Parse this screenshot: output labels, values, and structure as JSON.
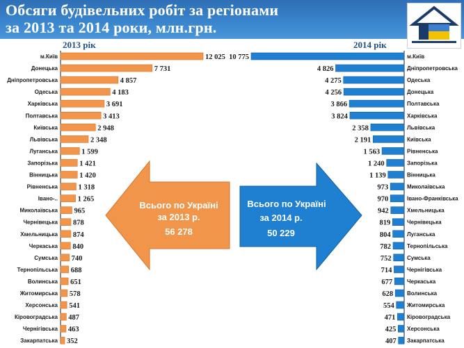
{
  "header": {
    "title_line1": "Обсяги будівельних робіт за регіонами",
    "title_line2": "за 2013 та 2014 роки, млн.грн."
  },
  "colors": {
    "orange": "#f0954a",
    "orange_dark": "#d8732a",
    "blue": "#1f7fd0",
    "blue_dark": "#13609f"
  },
  "chart_data": [
    {
      "type": "bar",
      "series_label": "2013 рік",
      "categories": [
        "м.Київ",
        "Донецька",
        "Дніпропетровська",
        "Одеська",
        "Харківська",
        "Полтавська",
        "Київська",
        "Львівська",
        "Луганська",
        "Запорізька",
        "Вінницька",
        "Рівненська",
        "Івано-..",
        "Миколаївська",
        "Чернівецька",
        "Хмельницька",
        "Черкаська",
        "Сумська",
        "Тернопільська",
        "Волинська",
        "Житомирська",
        "Херсонська",
        "Кіровоградська",
        "Чернігівська",
        "Закарпатська"
      ],
      "values": [
        12025,
        7731,
        4857,
        4183,
        3691,
        3413,
        2948,
        2348,
        1599,
        1421,
        1420,
        1318,
        1265,
        965,
        878,
        874,
        840,
        740,
        688,
        651,
        578,
        541,
        487,
        463,
        352
      ],
      "value_labels": [
        "12 025",
        "7 731",
        "4 857",
        "4 183",
        "3 691",
        "3 413",
        "2 948",
        "2 348",
        "1 599",
        "1 421",
        "1 420",
        "1 318",
        "1 265",
        "965",
        "878",
        "874",
        "840",
        "740",
        "688",
        "651",
        "578",
        "541",
        "487",
        "463",
        "352"
      ],
      "total_text_line1": "Всього по Україні",
      "total_text_line2": "за 2013 р.",
      "total_value": "56 278"
    },
    {
      "type": "bar",
      "series_label": "2014 рік",
      "categories": [
        "м.Київ",
        "Дніпропетровська",
        "Одеська",
        "Донецька",
        "Полтавська",
        "Харківська",
        "Львівська",
        "Київська",
        "Рівненська",
        "Запорізька",
        "Вінницька",
        "Миколаївська",
        "Івано-Франківська",
        "Хмельницька",
        "Чернівецька",
        "Луганська",
        "Тернопільська",
        "Сумська",
        "Чернігівська",
        "Черкаська",
        "Волинська",
        "Житомирська",
        "Кіровоградська",
        "Херсонська",
        "Закарпатська"
      ],
      "values": [
        10775,
        4826,
        4275,
        4256,
        3866,
        3824,
        2358,
        2191,
        1563,
        1240,
        1139,
        973,
        970,
        942,
        819,
        804,
        782,
        752,
        714,
        677,
        628,
        554,
        471,
        425,
        407
      ],
      "value_labels": [
        "10 775",
        "4 826",
        "4 275",
        "4 256",
        "3 866",
        "3 824",
        "2 358",
        "2 191",
        "1 563",
        "1 240",
        "1 139",
        "973",
        "970",
        "942",
        "819",
        "804",
        "782",
        "752",
        "714",
        "677",
        "628",
        "554",
        "471",
        "425",
        "407"
      ],
      "total_text_line1": "Всього по Україні",
      "total_text_line2": "за 2014 р.",
      "total_value": "50 229"
    }
  ]
}
